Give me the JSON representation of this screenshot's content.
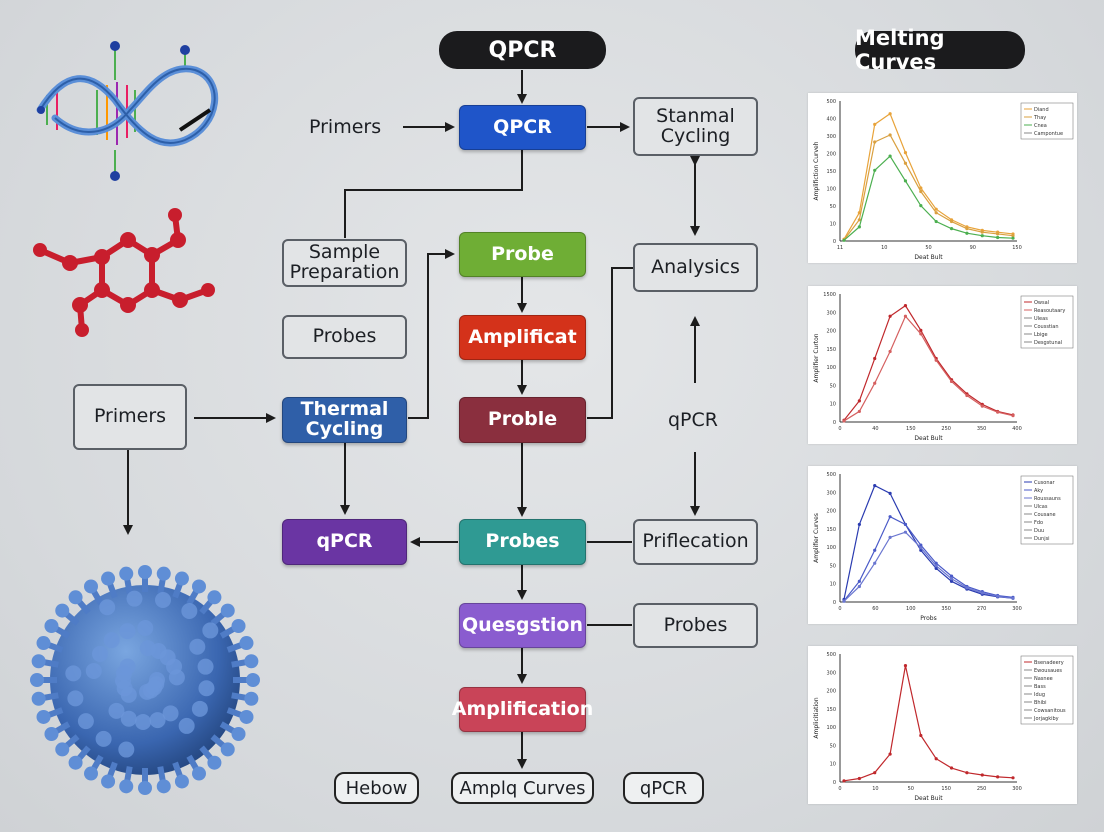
{
  "header": {
    "main_title": "QPCR",
    "side_title": "Melting Curves"
  },
  "flow": {
    "primers_top": "Primers",
    "qpcr_center": "QPCR",
    "stanmal_cycling": "Stanmal Cycling",
    "sample_preparation": "Sample Preparation",
    "probe": "Probe",
    "analysics": "Analysics",
    "probes_left": "Probes",
    "amplificat": "Amplificat",
    "primers_left": "Primers",
    "thermal_cycling": "Thermal Cycling",
    "proble": "Proble",
    "qpcr_float": "qPCR",
    "qpcr_purple": "qPCR",
    "probes_teal": "Probes",
    "priflecation": "Priflecation",
    "quesgstion": "Quesgstion",
    "probes_right": "Probes",
    "amplification": "Amplification",
    "hebow": "Hebow",
    "amplq_curves": "Amplq Curves",
    "qpcr_bottom": "qPCR"
  },
  "colors": {
    "blue": "#1f55c9",
    "green": "#6fae35",
    "red": "#d4321a",
    "thermal_blue": "#2f5fa8",
    "maroon": "#8a2f3e",
    "purple": "#6a35a3",
    "teal": "#2f9a93",
    "lavender": "#8a5ccf",
    "rose": "#c94458"
  },
  "icons": [
    "dna-helix-icon",
    "molecule-icon",
    "virus-icon"
  ],
  "chart_data": [
    {
      "type": "line",
      "xlabel": "Deat Bult",
      "ylabel": "Amplifiction Curveh",
      "x_ticks": [
        "11",
        "10",
        "50",
        "90",
        "150"
      ],
      "y_ticks": [
        "0",
        "10",
        "50",
        "100",
        "150",
        "200",
        "300",
        "400",
        "500"
      ],
      "legend": [
        "Diand",
        "Thay",
        "Cnea",
        "Campontue"
      ],
      "series": [
        {
          "name": "Diand",
          "color": "#e8a33a",
          "y": [
            5,
            80,
            330,
            360,
            250,
            150,
            90,
            60,
            40,
            30,
            25,
            20
          ]
        },
        {
          "name": "Thay",
          "color": "#d9a040",
          "y": [
            3,
            60,
            280,
            300,
            220,
            140,
            80,
            55,
            35,
            25,
            20,
            15
          ]
        },
        {
          "name": "Cnea",
          "color": "#4caf50",
          "y": [
            2,
            40,
            200,
            240,
            170,
            100,
            55,
            35,
            22,
            15,
            10,
            8
          ]
        }
      ]
    },
    {
      "type": "line",
      "xlabel": "Deat Bult",
      "ylabel": "Amplifier Curton",
      "x_ticks": [
        "0",
        "40",
        "150",
        "250",
        "350",
        "400"
      ],
      "y_ticks": [
        "0",
        "10",
        "50",
        "100",
        "150",
        "200",
        "300",
        "1500"
      ],
      "legend": [
        "Owsal",
        "Reasoutaary",
        "Uleas",
        "Cousstian",
        "Lbige",
        "Desgstunal"
      ],
      "series": [
        {
          "name": "Owsal",
          "color": "#c0282c",
          "y": [
            5,
            60,
            180,
            300,
            330,
            260,
            180,
            120,
            80,
            50,
            30,
            20
          ]
        },
        {
          "name": "Reasoutaary",
          "color": "#d56060",
          "y": [
            3,
            30,
            110,
            200,
            300,
            250,
            175,
            115,
            75,
            45,
            28,
            18
          ]
        }
      ]
    },
    {
      "type": "line",
      "xlabel": "Probs",
      "ylabel": "Amplifier Curves",
      "x_ticks": [
        "0",
        "60",
        "100",
        "350",
        "270",
        "300"
      ],
      "y_ticks": [
        "0",
        "10",
        "50",
        "100",
        "150",
        "200",
        "300",
        "500"
      ],
      "legend": [
        "Cusonar",
        "Aky",
        "Roussauns",
        "Ulcas",
        "Cousane",
        "Fdo",
        "Duu",
        "Dunjsi"
      ],
      "series": [
        {
          "name": "Cusonar",
          "color": "#2a3bb0",
          "y": [
            10,
            300,
            450,
            420,
            300,
            200,
            130,
            80,
            50,
            30,
            20,
            15
          ]
        },
        {
          "name": "Aky",
          "color": "#4a5ac8",
          "y": [
            5,
            80,
            200,
            330,
            300,
            220,
            150,
            100,
            60,
            40,
            25,
            18
          ]
        },
        {
          "name": "Roussauns",
          "color": "#6a76d0",
          "y": [
            3,
            60,
            150,
            250,
            270,
            210,
            140,
            90,
            55,
            35,
            22,
            14
          ]
        }
      ]
    },
    {
      "type": "line",
      "xlabel": "Deat Buit",
      "ylabel": "Amplicitiation",
      "x_ticks": [
        "0",
        "10",
        "50",
        "150",
        "250",
        "300"
      ],
      "y_ticks": [
        "0",
        "10",
        "50",
        "100",
        "150",
        "200",
        "300",
        "500"
      ],
      "legend": [
        "Bsenadeery",
        "Ewousaues",
        "Nasnee",
        "Bass",
        "Idug",
        "Bhibi",
        "Cowsanitous",
        "Jorjagkiby"
      ],
      "series": [
        {
          "name": "Bsenadeery",
          "color": "#c0282c",
          "y": [
            5,
            15,
            40,
            120,
            500,
            200,
            100,
            60,
            40,
            30,
            22,
            18
          ]
        }
      ]
    }
  ]
}
